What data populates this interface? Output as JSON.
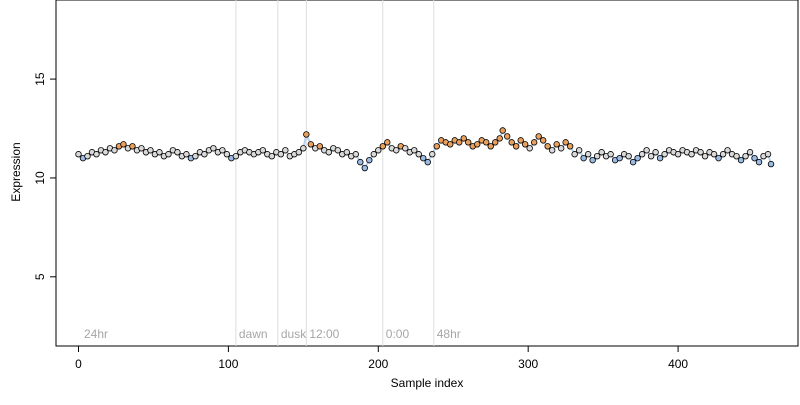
{
  "chart_data": {
    "type": "scatter",
    "xlabel": "Sample index",
    "ylabel": "Expression",
    "xlim": [
      -15,
      480
    ],
    "ylim": [
      1.5,
      19
    ],
    "x_ticks": [
      0,
      100,
      200,
      300,
      400
    ],
    "y_ticks": [
      5,
      10,
      15
    ],
    "grid": false,
    "legend": "none",
    "vertical_markers": [
      {
        "x": 105,
        "label": "dawn"
      },
      {
        "x": 133,
        "label": "dusk"
      },
      {
        "x": 152,
        "label": "12:00"
      },
      {
        "x": 203,
        "label": "0:00"
      },
      {
        "x": 237,
        "label": "48hr"
      }
    ],
    "corner_label": "24hr",
    "colors": {
      "point_stroke": "#000000",
      "default_fill": "#d9d9d9",
      "high_fill": "#e8a05c",
      "low_fill": "#9bbbe3",
      "trend_line": "#a9c6e8",
      "marker_line": "#dddddd",
      "marker_text": "#a6a6a6"
    },
    "series": [
      {
        "points": [
          [
            0,
            11.2
          ],
          [
            3,
            11.0
          ],
          [
            6,
            11.1
          ],
          [
            9,
            11.3
          ],
          [
            12,
            11.2
          ],
          [
            15,
            11.4
          ],
          [
            18,
            11.3
          ],
          [
            21,
            11.5
          ],
          [
            24,
            11.4
          ],
          [
            27,
            11.6
          ],
          [
            30,
            11.7
          ],
          [
            33,
            11.5
          ],
          [
            36,
            11.6
          ],
          [
            39,
            11.4
          ],
          [
            42,
            11.5
          ],
          [
            45,
            11.3
          ],
          [
            48,
            11.4
          ],
          [
            51,
            11.2
          ],
          [
            54,
            11.3
          ],
          [
            57,
            11.1
          ],
          [
            60,
            11.2
          ],
          [
            63,
            11.4
          ],
          [
            66,
            11.3
          ],
          [
            69,
            11.1
          ],
          [
            72,
            11.2
          ],
          [
            75,
            11.0
          ],
          [
            78,
            11.1
          ],
          [
            81,
            11.3
          ],
          [
            84,
            11.2
          ],
          [
            87,
            11.4
          ],
          [
            90,
            11.5
          ],
          [
            93,
            11.3
          ],
          [
            96,
            11.4
          ],
          [
            99,
            11.2
          ],
          [
            102,
            11.0
          ],
          [
            105,
            11.1
          ],
          [
            108,
            11.3
          ],
          [
            111,
            11.4
          ],
          [
            114,
            11.3
          ],
          [
            117,
            11.2
          ],
          [
            120,
            11.3
          ],
          [
            123,
            11.4
          ],
          [
            126,
            11.2
          ],
          [
            129,
            11.1
          ],
          [
            132,
            11.3
          ],
          [
            135,
            11.2
          ],
          [
            138,
            11.4
          ],
          [
            141,
            11.1
          ],
          [
            144,
            11.2
          ],
          [
            147,
            11.3
          ],
          [
            150,
            11.5
          ],
          [
            152,
            12.2
          ],
          [
            155,
            11.7
          ],
          [
            158,
            11.5
          ],
          [
            161,
            11.6
          ],
          [
            164,
            11.4
          ],
          [
            167,
            11.3
          ],
          [
            170,
            11.5
          ],
          [
            173,
            11.4
          ],
          [
            176,
            11.2
          ],
          [
            179,
            11.3
          ],
          [
            182,
            11.1
          ],
          [
            185,
            11.2
          ],
          [
            188,
            10.8
          ],
          [
            191,
            10.5
          ],
          [
            194,
            10.9
          ],
          [
            197,
            11.2
          ],
          [
            200,
            11.4
          ],
          [
            203,
            11.6
          ],
          [
            206,
            11.8
          ],
          [
            209,
            11.5
          ],
          [
            212,
            11.4
          ],
          [
            215,
            11.6
          ],
          [
            218,
            11.5
          ],
          [
            221,
            11.3
          ],
          [
            224,
            11.4
          ],
          [
            227,
            11.2
          ],
          [
            230,
            11.0
          ],
          [
            233,
            10.8
          ],
          [
            236,
            11.2
          ],
          [
            239,
            11.6
          ],
          [
            242,
            11.9
          ],
          [
            245,
            11.8
          ],
          [
            248,
            11.7
          ],
          [
            251,
            11.9
          ],
          [
            254,
            11.8
          ],
          [
            257,
            12.0
          ],
          [
            260,
            11.8
          ],
          [
            263,
            11.6
          ],
          [
            266,
            11.7
          ],
          [
            269,
            11.9
          ],
          [
            272,
            11.8
          ],
          [
            275,
            11.6
          ],
          [
            278,
            11.8
          ],
          [
            281,
            12.0
          ],
          [
            283,
            12.4
          ],
          [
            286,
            12.1
          ],
          [
            289,
            11.8
          ],
          [
            292,
            11.6
          ],
          [
            295,
            11.9
          ],
          [
            298,
            11.7
          ],
          [
            301,
            11.5
          ],
          [
            304,
            11.8
          ],
          [
            307,
            12.1
          ],
          [
            310,
            11.9
          ],
          [
            313,
            11.6
          ],
          [
            316,
            11.4
          ],
          [
            319,
            11.7
          ],
          [
            322,
            11.5
          ],
          [
            325,
            11.8
          ],
          [
            328,
            11.6
          ],
          [
            331,
            11.2
          ],
          [
            334,
            11.4
          ],
          [
            337,
            11.0
          ],
          [
            340,
            11.2
          ],
          [
            343,
            10.9
          ],
          [
            346,
            11.1
          ],
          [
            349,
            11.3
          ],
          [
            352,
            11.1
          ],
          [
            355,
            11.2
          ],
          [
            358,
            10.9
          ],
          [
            361,
            11.0
          ],
          [
            364,
            11.2
          ],
          [
            367,
            11.1
          ],
          [
            370,
            10.8
          ],
          [
            373,
            11.0
          ],
          [
            376,
            11.2
          ],
          [
            379,
            11.4
          ],
          [
            382,
            11.1
          ],
          [
            385,
            11.3
          ],
          [
            388,
            11.0
          ],
          [
            391,
            11.2
          ],
          [
            394,
            11.4
          ],
          [
            397,
            11.3
          ],
          [
            400,
            11.2
          ],
          [
            403,
            11.4
          ],
          [
            406,
            11.3
          ],
          [
            409,
            11.2
          ],
          [
            412,
            11.4
          ],
          [
            415,
            11.3
          ],
          [
            418,
            11.1
          ],
          [
            421,
            11.3
          ],
          [
            424,
            11.2
          ],
          [
            427,
            11.0
          ],
          [
            430,
            11.2
          ],
          [
            433,
            11.4
          ],
          [
            436,
            11.2
          ],
          [
            439,
            11.1
          ],
          [
            442,
            10.9
          ],
          [
            445,
            11.1
          ],
          [
            448,
            11.3
          ],
          [
            451,
            11.0
          ],
          [
            454,
            10.8
          ],
          [
            457,
            11.1
          ],
          [
            460,
            11.2
          ],
          [
            462,
            10.7
          ]
        ]
      }
    ]
  }
}
